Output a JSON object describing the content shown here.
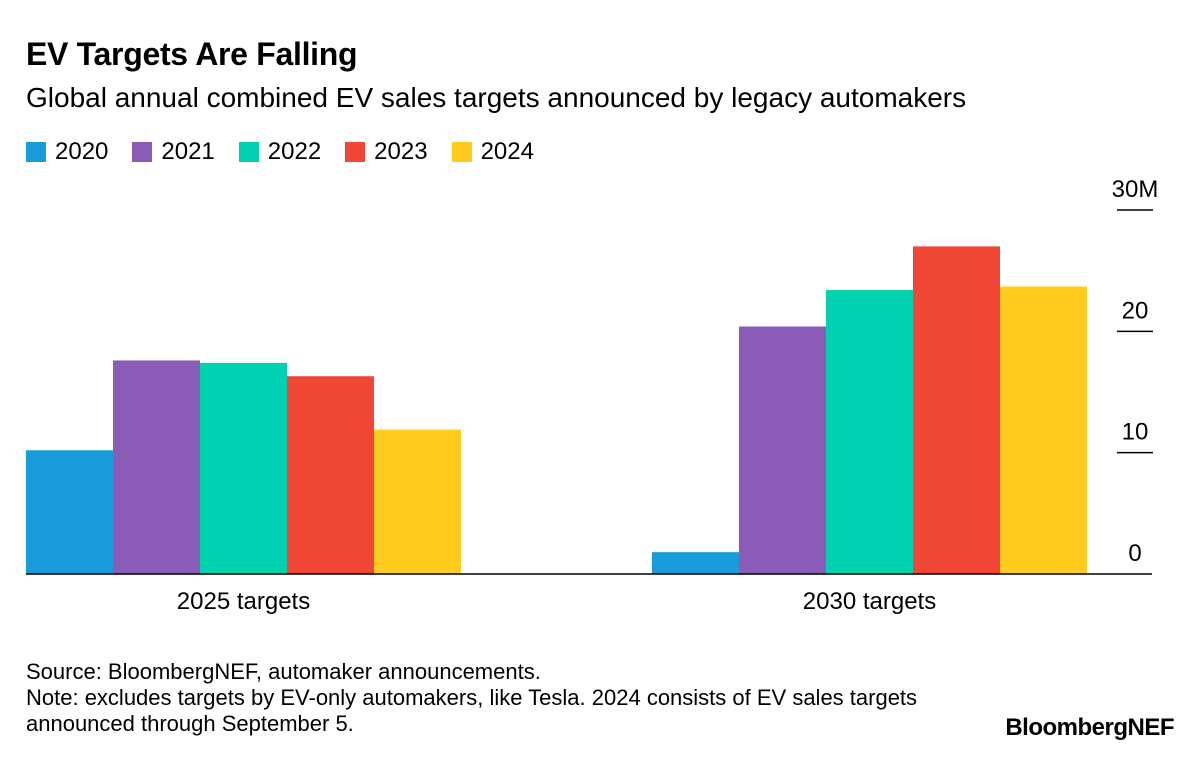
{
  "chart_data": {
    "type": "bar",
    "title": "EV Targets Are Falling",
    "subtitle": "Global annual combined EV sales targets announced by legacy automakers",
    "categories": [
      "2025 targets",
      "2030 targets"
    ],
    "series": [
      {
        "name": "2020",
        "color": "#1a9bdb",
        "values": [
          10.2,
          1.8
        ]
      },
      {
        "name": "2021",
        "color": "#8a5cb8",
        "values": [
          17.6,
          20.4
        ]
      },
      {
        "name": "2022",
        "color": "#00d1b0",
        "values": [
          17.4,
          23.4
        ]
      },
      {
        "name": "2023",
        "color": "#ef4636",
        "values": [
          16.3,
          27.0
        ]
      },
      {
        "name": "2024",
        "color": "#ffcc1f",
        "values": [
          11.9,
          23.7
        ]
      }
    ],
    "yticks": [
      "0",
      "10",
      "20",
      "30M"
    ],
    "ytick_values": [
      0,
      10,
      20,
      30
    ],
    "ylim": [
      0,
      30
    ],
    "xlabel": "",
    "ylabel": "",
    "legend_position": "top-left",
    "y_axis_position": "right"
  },
  "footer": {
    "source": "Source: BloombergNEF, automaker announcements.",
    "note": "Note: excludes targets by EV-only automakers, like Tesla. 2024 consists of EV sales targets announced through September 5."
  },
  "brand": "BloombergNEF"
}
